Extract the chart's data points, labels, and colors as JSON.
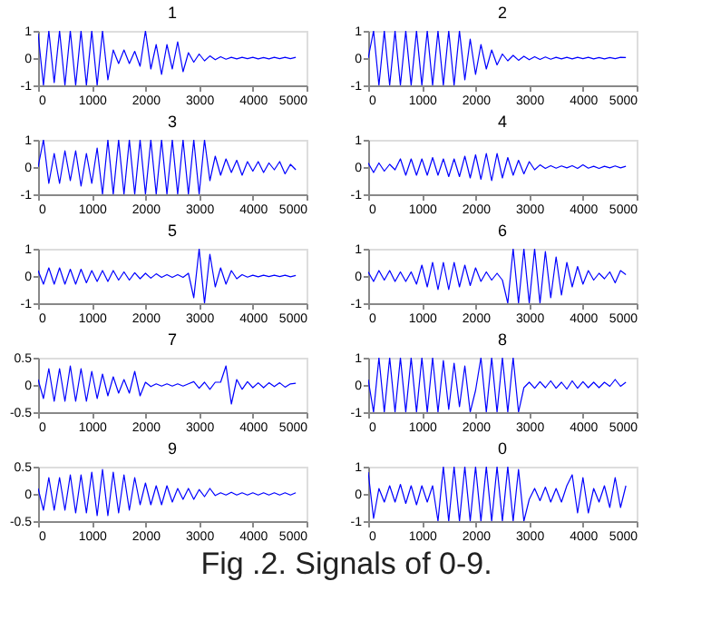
{
  "chart_data": [
    {
      "type": "line",
      "title": "1",
      "color": "#0000ff",
      "xlim": [
        0,
        5000
      ],
      "ylim": [
        -1,
        1
      ],
      "xticks": [
        0,
        1000,
        2000,
        3000,
        4000,
        5000
      ],
      "yticks": [
        -1,
        0,
        1
      ],
      "x": [
        0,
        100,
        200,
        300,
        400,
        500,
        600,
        700,
        800,
        900,
        1000,
        1100,
        1200,
        1300,
        1400,
        1500,
        1600,
        1700,
        1800,
        1900,
        2000,
        2100,
        2200,
        2300,
        2400,
        2500,
        2600,
        2700,
        2800,
        2900,
        3000,
        3100,
        3200,
        3300,
        3400,
        3500,
        3600,
        3700,
        3800,
        3900,
        4000,
        4100,
        4200,
        4300,
        4400,
        4500,
        4600,
        4700,
        4800
      ],
      "values": [
        0.9,
        -1,
        1,
        -0.9,
        1,
        -1,
        1,
        -1,
        1,
        -1,
        1,
        -1,
        1,
        -0.8,
        0.3,
        -0.2,
        0.3,
        -0.2,
        0.25,
        -0.3,
        1,
        -0.4,
        0.5,
        -0.6,
        0.5,
        -0.4,
        0.6,
        -0.5,
        0.2,
        -0.15,
        0.15,
        -0.1,
        0.08,
        -0.06,
        0.05,
        -0.04,
        0.03,
        -0.03,
        0.03,
        -0.02,
        0.03,
        -0.03,
        0.02,
        -0.03,
        0.03,
        -0.02,
        0.03,
        -0.02,
        0.03
      ]
    },
    {
      "type": "line",
      "title": "2",
      "color": "#0000ff",
      "xlim": [
        0,
        5000
      ],
      "ylim": [
        -1,
        1
      ],
      "xticks": [
        0,
        1000,
        2000,
        3000,
        4000,
        5000
      ],
      "yticks": [
        -1,
        0,
        1
      ],
      "x": [
        0,
        100,
        200,
        300,
        400,
        500,
        600,
        700,
        800,
        900,
        1000,
        1100,
        1200,
        1300,
        1400,
        1500,
        1600,
        1700,
        1800,
        1900,
        2000,
        2100,
        2200,
        2300,
        2400,
        2500,
        2600,
        2700,
        2800,
        2900,
        3000,
        3100,
        3200,
        3300,
        3400,
        3500,
        3600,
        3700,
        3800,
        3900,
        4000,
        4100,
        4200,
        4300,
        4400,
        4500,
        4600,
        4700,
        4800
      ],
      "values": [
        0,
        1,
        -1,
        1,
        -1,
        1,
        -1,
        1,
        -1,
        1,
        -1,
        1,
        -1,
        1,
        -1,
        1,
        -1,
        1,
        -0.8,
        0.7,
        -0.6,
        0.5,
        -0.4,
        0.3,
        -0.25,
        0.15,
        -0.1,
        0.1,
        -0.08,
        0.07,
        -0.06,
        0.05,
        -0.05,
        0.04,
        -0.04,
        0.03,
        -0.03,
        0.03,
        -0.03,
        0.03,
        -0.02,
        0.03,
        -0.03,
        0.02,
        -0.03,
        0.02,
        -0.02,
        0.03,
        0.02
      ]
    },
    {
      "type": "line",
      "title": "3",
      "color": "#0000ff",
      "xlim": [
        0,
        5000
      ],
      "ylim": [
        -1,
        1
      ],
      "xticks": [
        0,
        1000,
        2000,
        3000,
        4000,
        5000
      ],
      "yticks": [
        -1,
        0,
        1
      ],
      "x": [
        0,
        100,
        200,
        300,
        400,
        500,
        600,
        700,
        800,
        900,
        1000,
        1100,
        1200,
        1300,
        1400,
        1500,
        1600,
        1700,
        1800,
        1900,
        2000,
        2100,
        2200,
        2300,
        2400,
        2500,
        2600,
        2700,
        2800,
        2900,
        3000,
        3100,
        3200,
        3300,
        3400,
        3500,
        3600,
        3700,
        3800,
        3900,
        4000,
        4100,
        4200,
        4300,
        4400,
        4500,
        4600,
        4700,
        4800
      ],
      "values": [
        0,
        1,
        -0.6,
        0.5,
        -0.6,
        0.6,
        -0.5,
        0.6,
        -0.7,
        0.5,
        -0.6,
        0.7,
        -1,
        1,
        -1,
        1,
        -1,
        1,
        -1,
        1,
        -1,
        1,
        -1,
        1,
        -1,
        1,
        -1,
        1,
        -1,
        1,
        -1,
        1,
        -0.5,
        0.4,
        -0.3,
        0.3,
        -0.2,
        0.25,
        -0.3,
        0.2,
        -0.15,
        0.2,
        -0.2,
        0.15,
        -0.1,
        0.2,
        -0.25,
        0.1,
        -0.1
      ]
    },
    {
      "type": "line",
      "title": "4",
      "color": "#0000ff",
      "xlim": [
        0,
        5000
      ],
      "ylim": [
        -1,
        1
      ],
      "xticks": [
        0,
        1000,
        2000,
        3000,
        4000,
        5000
      ],
      "yticks": [
        -1,
        0,
        1
      ],
      "x": [
        0,
        100,
        200,
        300,
        400,
        500,
        600,
        700,
        800,
        900,
        1000,
        1100,
        1200,
        1300,
        1400,
        1500,
        1600,
        1700,
        1800,
        1900,
        2000,
        2100,
        2200,
        2300,
        2400,
        2500,
        2600,
        2700,
        2800,
        2900,
        3000,
        3100,
        3200,
        3300,
        3400,
        3500,
        3600,
        3700,
        3800,
        3900,
        4000,
        4100,
        4200,
        4300,
        4400,
        4500,
        4600,
        4700,
        4800
      ],
      "values": [
        0.15,
        -0.2,
        0.15,
        -0.15,
        0.1,
        -0.1,
        0.3,
        -0.3,
        0.3,
        -0.3,
        0.3,
        -0.3,
        0.35,
        -0.3,
        0.3,
        -0.35,
        0.3,
        -0.35,
        0.4,
        -0.4,
        0.45,
        -0.45,
        0.5,
        -0.5,
        0.5,
        -0.4,
        0.35,
        -0.3,
        0.25,
        -0.25,
        0.2,
        -0.1,
        0.08,
        -0.05,
        0.05,
        -0.04,
        0.04,
        -0.03,
        0.05,
        -0.05,
        0.08,
        -0.04,
        0.03,
        -0.05,
        0.03,
        -0.03,
        0.04,
        -0.03,
        0.03
      ]
    },
    {
      "type": "line",
      "title": "5",
      "color": "#0000ff",
      "xlim": [
        0,
        5000
      ],
      "ylim": [
        -1,
        1
      ],
      "xticks": [
        0,
        1000,
        2000,
        3000,
        4000,
        5000
      ],
      "yticks": [
        -1,
        0,
        1
      ],
      "x": [
        0,
        100,
        200,
        300,
        400,
        500,
        600,
        700,
        800,
        900,
        1000,
        1100,
        1200,
        1300,
        1400,
        1500,
        1600,
        1700,
        1800,
        1900,
        2000,
        2100,
        2200,
        2300,
        2400,
        2500,
        2600,
        2700,
        2800,
        2900,
        3000,
        3100,
        3200,
        3300,
        3400,
        3500,
        3600,
        3700,
        3800,
        3900,
        4000,
        4100,
        4200,
        4300,
        4400,
        4500,
        4600,
        4700,
        4800
      ],
      "values": [
        0.2,
        -0.3,
        0.3,
        -0.3,
        0.3,
        -0.3,
        0.25,
        -0.3,
        0.25,
        -0.25,
        0.2,
        -0.2,
        0.2,
        -0.2,
        0.2,
        -0.15,
        0.15,
        -0.15,
        0.12,
        -0.1,
        0.1,
        -0.08,
        0.08,
        -0.05,
        0.05,
        -0.05,
        0.05,
        -0.05,
        0.1,
        -0.8,
        1,
        -1,
        0.8,
        -0.4,
        0.3,
        -0.3,
        0.2,
        -0.1,
        0.05,
        -0.04,
        0.03,
        -0.03,
        0.03,
        -0.02,
        0.03,
        -0.02,
        0.03,
        -0.03,
        0.02
      ]
    },
    {
      "type": "line",
      "title": "6",
      "color": "#0000ff",
      "xlim": [
        0,
        5000
      ],
      "ylim": [
        -1,
        1
      ],
      "xticks": [
        0,
        1000,
        2000,
        3000,
        4000,
        5000
      ],
      "yticks": [
        -1,
        0,
        1
      ],
      "x": [
        0,
        100,
        200,
        300,
        400,
        500,
        600,
        700,
        800,
        900,
        1000,
        1100,
        1200,
        1300,
        1400,
        1500,
        1600,
        1700,
        1800,
        1900,
        2000,
        2100,
        2200,
        2300,
        2400,
        2500,
        2600,
        2700,
        2800,
        2900,
        3000,
        3100,
        3200,
        3300,
        3400,
        3500,
        3600,
        3700,
        3800,
        3900,
        4000,
        4100,
        4200,
        4300,
        4400,
        4500,
        4600,
        4700,
        4800
      ],
      "values": [
        0.15,
        -0.2,
        0.2,
        -0.15,
        0.2,
        -0.2,
        0.15,
        -0.2,
        0.15,
        -0.3,
        0.4,
        -0.4,
        0.5,
        -0.5,
        0.5,
        -0.5,
        0.5,
        -0.4,
        0.4,
        -0.35,
        0.3,
        -0.2,
        0.15,
        -0.15,
        0.1,
        -0.15,
        -1,
        1,
        -1,
        1,
        -1,
        1,
        -1,
        0.9,
        -0.8,
        0.7,
        -0.7,
        0.5,
        -0.4,
        0.35,
        -0.3,
        0.2,
        -0.15,
        0.1,
        -0.1,
        0.15,
        -0.25,
        0.2,
        0.05
      ]
    },
    {
      "type": "line",
      "title": "7",
      "color": "#0000ff",
      "xlim": [
        0,
        5000
      ],
      "ylim": [
        -0.5,
        0.5
      ],
      "xticks": [
        0,
        1000,
        2000,
        3000,
        4000,
        5000
      ],
      "yticks": [
        -0.5,
        0,
        0.5
      ],
      "x": [
        0,
        100,
        200,
        300,
        400,
        500,
        600,
        700,
        800,
        900,
        1000,
        1100,
        1200,
        1300,
        1400,
        1500,
        1600,
        1700,
        1800,
        1900,
        2000,
        2100,
        2200,
        2300,
        2400,
        2500,
        2600,
        2700,
        2800,
        2900,
        3000,
        3100,
        3200,
        3300,
        3400,
        3500,
        3600,
        3700,
        3800,
        3900,
        4000,
        4100,
        4200,
        4300,
        4400,
        4500,
        4600,
        4700,
        4800
      ],
      "values": [
        0.1,
        -0.25,
        0.3,
        -0.3,
        0.3,
        -0.3,
        0.35,
        -0.3,
        0.3,
        -0.3,
        0.25,
        -0.25,
        0.2,
        -0.2,
        0.15,
        -0.15,
        0.1,
        -0.15,
        0.25,
        -0.2,
        0.05,
        -0.03,
        0.02,
        -0.02,
        0.02,
        -0.02,
        0.02,
        -0.02,
        0.02,
        0.06,
        -0.06,
        0.05,
        -0.08,
        0.05,
        0.05,
        0.35,
        -0.35,
        0.1,
        -0.08,
        0.06,
        -0.05,
        0.04,
        -0.05,
        0.04,
        -0.03,
        0.04,
        -0.04,
        0.02,
        0.03
      ]
    },
    {
      "type": "line",
      "title": "8",
      "color": "#0000ff",
      "xlim": [
        0,
        5000
      ],
      "ylim": [
        -1,
        1
      ],
      "xticks": [
        0,
        1000,
        2000,
        3000,
        4000,
        5000
      ],
      "yticks": [
        -1,
        0,
        1
      ],
      "x": [
        0,
        100,
        200,
        300,
        400,
        500,
        600,
        700,
        800,
        900,
        1000,
        1100,
        1200,
        1300,
        1400,
        1500,
        1600,
        1700,
        1800,
        1900,
        2000,
        2100,
        2200,
        2300,
        2400,
        2500,
        2600,
        2700,
        2800,
        2900,
        3000,
        3100,
        3200,
        3300,
        3400,
        3500,
        3600,
        3700,
        3800,
        3900,
        4000,
        4100,
        4200,
        4300,
        4400,
        4500,
        4600,
        4700,
        4800
      ],
      "values": [
        0.2,
        -1,
        1,
        -1,
        1,
        -1,
        1,
        -1,
        1,
        -1,
        1,
        -1,
        1,
        -1,
        0.9,
        -0.9,
        0.8,
        -0.8,
        0.7,
        -1,
        -0.2,
        1,
        -1,
        1,
        -1,
        1,
        -1,
        1,
        -1,
        -0.1,
        0.1,
        -0.12,
        0.12,
        -0.1,
        0.15,
        -0.12,
        0.1,
        -0.15,
        0.15,
        -0.12,
        0.12,
        -0.1,
        0.1,
        -0.1,
        0.1,
        -0.05,
        0.2,
        -0.05,
        0.1
      ]
    },
    {
      "type": "line",
      "title": "9",
      "color": "#0000ff",
      "xlim": [
        0,
        5000
      ],
      "ylim": [
        -0.5,
        0.5
      ],
      "xticks": [
        0,
        1000,
        2000,
        3000,
        4000,
        5000
      ],
      "yticks": [
        -0.5,
        0,
        0.5
      ],
      "x": [
        0,
        100,
        200,
        300,
        400,
        500,
        600,
        700,
        800,
        900,
        1000,
        1100,
        1200,
        1300,
        1400,
        1500,
        1600,
        1700,
        1800,
        1900,
        2000,
        2100,
        2200,
        2300,
        2400,
        2500,
        2600,
        2700,
        2800,
        2900,
        3000,
        3100,
        3200,
        3300,
        3400,
        3500,
        3600,
        3700,
        3800,
        3900,
        4000,
        4100,
        4200,
        4300,
        4400,
        4500,
        4600,
        4700,
        4800
      ],
      "values": [
        0.1,
        -0.3,
        0.3,
        -0.3,
        0.3,
        -0.3,
        0.35,
        -0.35,
        0.35,
        -0.35,
        0.4,
        -0.4,
        0.45,
        -0.4,
        0.4,
        -0.35,
        0.35,
        -0.3,
        0.3,
        -0.2,
        0.2,
        -0.2,
        0.15,
        -0.2,
        0.15,
        -0.15,
        0.1,
        -0.1,
        0.1,
        -0.1,
        0.08,
        -0.05,
        0.1,
        -0.03,
        0.02,
        -0.02,
        0.03,
        -0.02,
        0.02,
        -0.02,
        0.02,
        -0.02,
        0.02,
        -0.02,
        0.02,
        -0.02,
        0.02,
        -0.02,
        0.02
      ]
    },
    {
      "type": "line",
      "title": "0",
      "color": "#0000ff",
      "xlim": [
        0,
        5000
      ],
      "ylim": [
        -1,
        1
      ],
      "xticks": [
        0,
        1000,
        2000,
        3000,
        4000,
        5000
      ],
      "yticks": [
        -1,
        0,
        1
      ],
      "annotations": [
        "Fig .2. Signals of 0-9."
      ],
      "x": [
        0,
        100,
        200,
        300,
        400,
        500,
        600,
        700,
        800,
        900,
        1000,
        1100,
        1200,
        1300,
        1400,
        1500,
        1600,
        1700,
        1800,
        1900,
        2000,
        2100,
        2200,
        2300,
        2400,
        2500,
        2600,
        2700,
        2800,
        2900,
        3000,
        3100,
        3200,
        3300,
        3400,
        3500,
        3600,
        3700,
        3800,
        3900,
        4000,
        4100,
        4200,
        4300,
        4400,
        4500,
        4600,
        4700,
        4800
      ],
      "values": [
        0.8,
        -0.9,
        0.2,
        -0.3,
        0.3,
        -0.3,
        0.35,
        -0.35,
        0.3,
        -0.4,
        0.3,
        -0.3,
        0.3,
        -1,
        1,
        -1,
        1,
        -1,
        1,
        -1,
        1,
        -1,
        1,
        -1,
        1,
        -1,
        1,
        -1,
        0.9,
        -1,
        -0.2,
        0.2,
        -0.25,
        0.25,
        -0.3,
        0.2,
        -0.3,
        0.3,
        0.7,
        -0.7,
        0.6,
        -0.7,
        0.2,
        -0.3,
        0.3,
        -0.5,
        0.6,
        -0.5,
        0.3
      ]
    }
  ]
}
